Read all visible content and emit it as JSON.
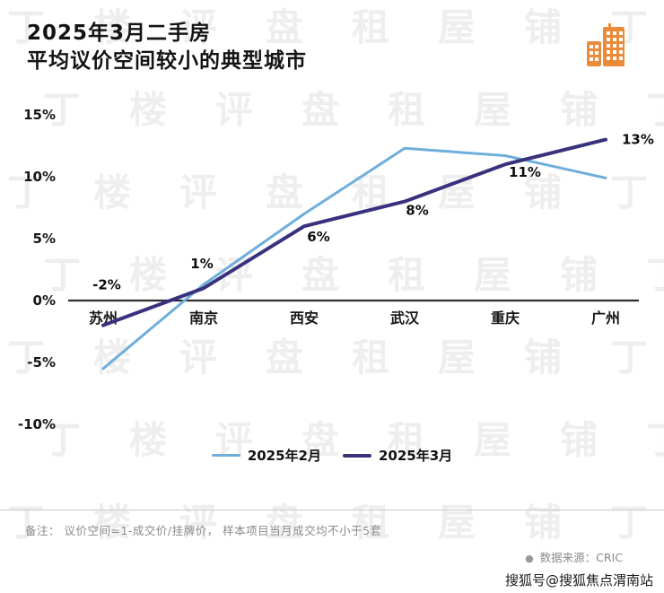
{
  "title": {
    "line1": "2025年3月二手房",
    "line2": "平均议价空间较小的典型城市"
  },
  "chart_data": {
    "type": "line",
    "categories": [
      "苏州",
      "南京",
      "西安",
      "武汉",
      "重庆",
      "广州"
    ],
    "series": [
      {
        "name": "2025年2月",
        "color": "#6FAEDB",
        "width": 3,
        "values": [
          -5.5,
          1.3,
          7.0,
          12.3,
          11.7,
          9.9
        ]
      },
      {
        "name": "2025年3月",
        "color": "#38327D",
        "width": 4,
        "values": [
          -2,
          1,
          6,
          8,
          11,
          13
        ],
        "labels": [
          {
            "text": "-2%",
            "dx": 4,
            "dy": -40
          },
          {
            "text": "1%",
            "dx": -2,
            "dy": -22
          },
          {
            "text": "6%",
            "dx": 16,
            "dy": 17
          },
          {
            "text": "8%",
            "dx": 14,
            "dy": 15
          },
          {
            "text": "11%",
            "dx": 22,
            "dy": 14
          },
          {
            "text": "13%",
            "dx": 18,
            "dy": 5,
            "anchor": "start"
          }
        ]
      }
    ],
    "ylim": [
      -10,
      15
    ],
    "yticks": [
      15,
      10,
      5,
      0,
      -5,
      -10
    ],
    "ytick_labels": [
      "15%",
      "10%",
      "5%",
      "0%",
      "-5%",
      "-10%"
    ],
    "grid": false,
    "legend_position": "bottom"
  },
  "footer": {
    "note": "备注：  议价空间=1-成交价/挂牌价，  样本项目当月成交均不小于5套",
    "source_bullet": "●",
    "source": "数据来源：CRIC",
    "sohu": "搜狐号@搜狐焦点渭南站"
  },
  "icons": {
    "building_icon_color": "#E98B3B"
  },
  "watermark": {
    "chars": [
      "丁",
      "楼",
      "评",
      "盘",
      "租",
      "屋",
      "铺",
      "丁"
    ]
  }
}
